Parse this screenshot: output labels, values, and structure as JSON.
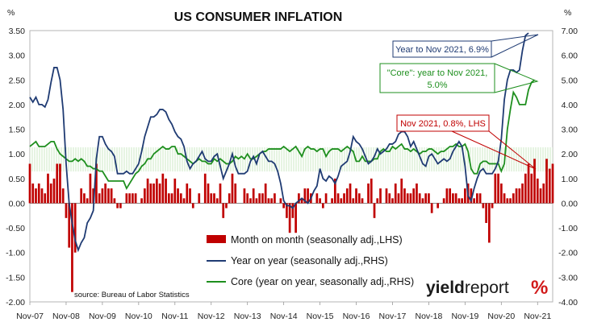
{
  "chart_data": {
    "type": "bar+line",
    "title": "US CONSUMER INFLATION",
    "left_axis": {
      "unit": "%",
      "ylim": [
        -2.0,
        3.5
      ],
      "ticks": [
        "3.50",
        "3.00",
        "2.50",
        "2.00",
        "1.50",
        "1.00",
        "0.50",
        "0.00",
        "-0.50",
        "-1.00",
        "-1.50",
        "-2.00"
      ]
    },
    "right_axis": {
      "unit": "%",
      "ylim": [
        -4.0,
        7.0
      ],
      "ticks": [
        "7.00",
        "6.00",
        "5.00",
        "4.00",
        "3.00",
        "2.00",
        "1.00",
        "0.00",
        "-1.00",
        "-2.00",
        "-3.00",
        "-4.00"
      ]
    },
    "x_ticks": [
      "Nov-07",
      "Nov-08",
      "Nov-09",
      "Nov-10",
      "Nov-11",
      "Nov-12",
      "Nov-13",
      "Nov-14",
      "Nov-15",
      "Nov-16",
      "Nov-17",
      "Nov-18",
      "Nov-19",
      "Nov-20",
      "Nov-21"
    ],
    "x_start": "Nov-07",
    "x_end": "Nov-21",
    "legend": [
      {
        "label": "Month on month (seasonally adj.,LHS)",
        "color": "#c00000",
        "kind": "bar"
      },
      {
        "label": "Year on year (seasonally adj.,RHS)",
        "color": "#1f3b73",
        "kind": "line"
      },
      {
        "label": "Core (year on year, seasonally adj.,RHS)",
        "color": "#1e8f1e",
        "kind": "line"
      }
    ],
    "source": "source: Bureau of Labor Statistics",
    "annotations": [
      {
        "label": "Year to Nov 2021, 6.9%",
        "color": "#1f3b73"
      },
      {
        "label_line1": "\"Core\": year to Nov 2021,",
        "label_line2": "5.0%",
        "color": "#1e8f1e"
      },
      {
        "label": "Nov 2021, 0.8%, LHS",
        "color": "#c00000"
      }
    ],
    "series": [
      {
        "name": "Month on month (seasonally adj.,LHS)",
        "axis": "left",
        "values": [
          0.8,
          0.4,
          0.3,
          0.4,
          0.3,
          0.2,
          0.6,
          0.4,
          0.5,
          0.8,
          0.8,
          0.3,
          -0.3,
          -0.9,
          -1.8,
          -1.0,
          0.0,
          0.3,
          0.2,
          0.1,
          0.6,
          0.3,
          0.8,
          0.2,
          0.3,
          0.4,
          0.3,
          0.3,
          0.1,
          -0.1,
          -0.1,
          0.0,
          0.2,
          0.2,
          0.2,
          0.2,
          0.0,
          0.1,
          0.3,
          0.5,
          0.4,
          0.4,
          0.5,
          0.4,
          0.6,
          0.5,
          0.2,
          0.2,
          0.5,
          0.3,
          0.2,
          0.1,
          0.4,
          0.3,
          -0.1,
          0.0,
          0.2,
          0.0,
          0.6,
          0.4,
          0.2,
          0.2,
          0.1,
          0.4,
          -0.3,
          -0.1,
          0.2,
          0.6,
          0.4,
          0.0,
          0.0,
          0.3,
          0.2,
          0.1,
          0.3,
          0.1,
          0.2,
          0.2,
          0.4,
          0.1,
          0.1,
          0.2,
          0.0,
          0.1,
          -0.1,
          -0.3,
          -0.6,
          -0.3,
          -0.6,
          0.2,
          0.1,
          0.3,
          0.3,
          0.2,
          0.0,
          0.2,
          0.1,
          -0.1,
          0.2,
          0.0,
          0.1,
          0.5,
          0.2,
          0.1,
          0.2,
          0.3,
          0.4,
          0.1,
          0.3,
          0.2,
          0.1,
          0.0,
          0.4,
          0.5,
          -0.3,
          0.1,
          0.3,
          0.0,
          0.3,
          0.2,
          0.1,
          0.4,
          0.2,
          0.5,
          0.3,
          0.2,
          0.2,
          0.3,
          0.4,
          0.2,
          0.1,
          0.2,
          0.2,
          -0.2,
          0.0,
          -0.1,
          0.0,
          0.1,
          0.3,
          0.3,
          0.2,
          0.2,
          0.1,
          0.1,
          0.3,
          0.4,
          0.3,
          0.1,
          0.2,
          0.2,
          -0.1,
          -0.4,
          -0.8,
          -0.1,
          0.6,
          0.6,
          0.4,
          0.2,
          0.1,
          0.1,
          0.2,
          0.3,
          0.3,
          0.4,
          0.6,
          0.8,
          0.6,
          0.9,
          0.5,
          0.3,
          0.4,
          0.9,
          0.7,
          0.8
        ]
      },
      {
        "name": "Year on year (seasonally adj.,RHS)",
        "axis": "right",
        "values": [
          4.3,
          4.1,
          4.3,
          4.0,
          4.0,
          3.9,
          4.2,
          4.9,
          5.5,
          5.5,
          5.0,
          3.8,
          1.6,
          0.0,
          -0.8,
          -1.5,
          -1.9,
          -1.6,
          -1.4,
          -0.8,
          -0.6,
          -0.3,
          1.8,
          2.7,
          2.7,
          2.4,
          2.2,
          2.1,
          1.9,
          1.2,
          1.2,
          1.2,
          1.3,
          1.2,
          1.2,
          1.4,
          1.6,
          2.1,
          2.7,
          3.1,
          3.5,
          3.5,
          3.6,
          3.8,
          3.8,
          3.7,
          3.4,
          3.2,
          2.9,
          2.7,
          2.6,
          2.3,
          1.7,
          1.4,
          1.6,
          1.7,
          1.9,
          2.1,
          1.8,
          1.7,
          1.7,
          1.9,
          2.0,
          1.5,
          1.0,
          1.3,
          1.6,
          2.0,
          1.5,
          1.2,
          1.2,
          1.2,
          1.3,
          1.7,
          1.9,
          1.6,
          2.0,
          2.1,
          1.9,
          1.7,
          1.7,
          1.6,
          1.3,
          0.8,
          0.1,
          -0.1,
          -0.1,
          -0.2,
          0.0,
          0.1,
          0.2,
          0.1,
          0.0,
          0.2,
          0.5,
          0.7,
          1.4,
          1.0,
          0.9,
          1.1,
          1.0,
          0.8,
          1.1,
          1.5,
          1.6,
          1.7,
          2.1,
          2.7,
          2.5,
          2.4,
          2.2,
          1.9,
          1.6,
          1.7,
          1.9,
          2.2,
          2.0,
          2.1,
          2.2,
          2.4,
          2.4,
          2.5,
          2.8,
          2.9,
          2.9,
          2.7,
          2.3,
          2.5,
          2.2,
          1.9,
          1.6,
          1.5,
          1.9,
          2.0,
          1.8,
          1.6,
          1.7,
          1.8,
          1.7,
          1.8,
          2.1,
          2.3,
          2.5,
          2.3,
          1.5,
          0.3,
          0.1,
          0.6,
          1.0,
          1.3,
          1.4,
          1.2,
          1.2,
          1.2,
          1.4,
          1.7,
          2.6,
          4.2,
          5.0,
          5.4,
          5.4,
          5.3,
          5.4,
          6.2,
          6.8,
          6.9
        ]
      },
      {
        "name": "Core (year on year, seasonally adj.,RHS)",
        "axis": "right",
        "values": [
          2.3,
          2.4,
          2.5,
          2.3,
          2.3,
          2.3,
          2.4,
          2.5,
          2.5,
          2.2,
          2.0,
          1.9,
          1.8,
          1.7,
          1.7,
          1.8,
          1.7,
          1.8,
          1.7,
          1.5,
          1.5,
          1.4,
          1.4,
          1.3,
          1.3,
          1.1,
          0.9,
          0.9,
          0.9,
          0.9,
          0.9,
          0.9,
          0.6,
          0.8,
          1.0,
          1.2,
          1.3,
          1.5,
          1.6,
          1.8,
          1.8,
          2.0,
          2.1,
          2.2,
          2.3,
          2.2,
          2.2,
          2.3,
          2.3,
          2.0,
          2.0,
          1.9,
          1.8,
          1.7,
          1.6,
          1.7,
          1.8,
          1.7,
          1.7,
          1.6,
          1.6,
          1.8,
          1.7,
          1.8,
          1.7,
          1.6,
          1.6,
          1.7,
          1.9,
          1.8,
          1.9,
          1.8,
          2.0,
          1.8,
          1.8,
          1.9,
          2.0,
          2.1,
          2.1,
          2.2,
          2.2,
          2.2,
          2.2,
          2.2,
          2.3,
          2.2,
          2.1,
          2.2,
          2.3,
          2.1,
          1.9,
          2.2,
          2.3,
          2.2,
          2.2,
          2.1,
          2.2,
          2.2,
          1.9,
          2.1,
          2.2,
          2.2,
          2.2,
          2.1,
          2.2,
          2.3,
          2.2,
          2.1,
          1.7,
          1.7,
          1.9,
          1.7,
          1.7,
          1.7,
          1.8,
          1.8,
          2.1,
          2.2,
          2.1,
          2.1,
          2.3,
          2.2,
          2.3,
          2.4,
          2.2,
          2.2,
          2.1,
          2.2,
          2.1,
          2.0,
          2.1,
          2.1,
          2.2,
          2.2,
          2.1,
          2.0,
          2.1,
          2.1,
          2.2,
          2.3,
          2.3,
          2.4,
          2.3,
          2.3,
          2.4,
          2.1,
          1.4,
          1.2,
          1.2,
          1.6,
          1.7,
          1.7,
          1.6,
          1.6,
          1.6,
          1.6,
          1.3,
          1.6,
          3.0,
          3.8,
          4.5,
          4.3,
          4.0,
          4.0,
          4.0,
          4.6,
          4.9,
          5.0
        ]
      }
    ]
  },
  "branding": {
    "part1": "yield",
    "part2": "report",
    "symbol": "%"
  }
}
